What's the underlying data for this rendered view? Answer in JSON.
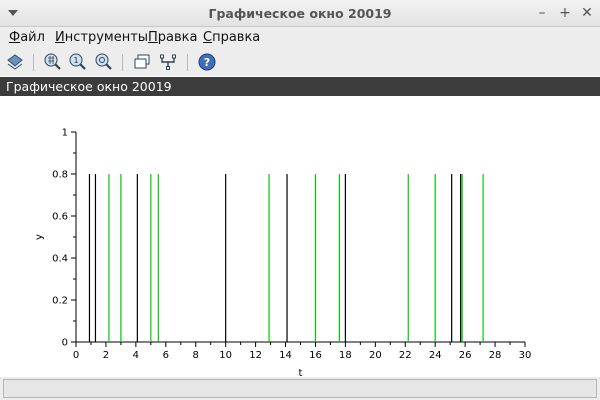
{
  "window": {
    "title": "Графическое окно 20019",
    "minimize": "–",
    "maximize": "+",
    "close": "✕"
  },
  "menu": [
    {
      "mnemonic": "Ф",
      "rest": "айл"
    },
    {
      "mnemonic": "И",
      "rest": "нструменты"
    },
    {
      "mnemonic": "П",
      "rest": "равка"
    },
    {
      "mnemonic": "С",
      "rest": "правка"
    }
  ],
  "toolbar": {
    "icons": [
      "rotate-icon",
      "zoom-grid-icon",
      "zoom-one-icon",
      "zoom-search-icon",
      "figure-windows-icon",
      "datatip-icon",
      "help-icon"
    ]
  },
  "figure": {
    "header": "Графическое окно 20019"
  },
  "chart_data": {
    "type": "bar",
    "xlabel": "t",
    "ylabel": "y",
    "xlim": [
      0,
      30
    ],
    "ylim": [
      0,
      1
    ],
    "xticks": [
      0,
      2,
      4,
      6,
      8,
      10,
      12,
      14,
      16,
      18,
      20,
      22,
      24,
      26,
      28,
      30
    ],
    "yticks": [
      0,
      0.2,
      0.4,
      0.6,
      0.8,
      1
    ],
    "grid": false,
    "series": [
      {
        "color": "#000000",
        "x": [
          0.9,
          1.3,
          4.1,
          10.0,
          14.1,
          18.0,
          25.1,
          25.7
        ],
        "values": [
          0.8,
          0.8,
          0.8,
          0.8,
          0.8,
          0.8,
          0.8,
          0.8
        ]
      },
      {
        "color": "#00cc00",
        "x": [
          2.2,
          3.0,
          5.0,
          5.5,
          12.9,
          16.0,
          17.6,
          22.2,
          24.0,
          25.8,
          27.2
        ],
        "values": [
          0.8,
          0.8,
          0.8,
          0.8,
          0.8,
          0.8,
          0.8,
          0.8,
          0.8,
          0.8,
          0.8
        ]
      }
    ]
  }
}
